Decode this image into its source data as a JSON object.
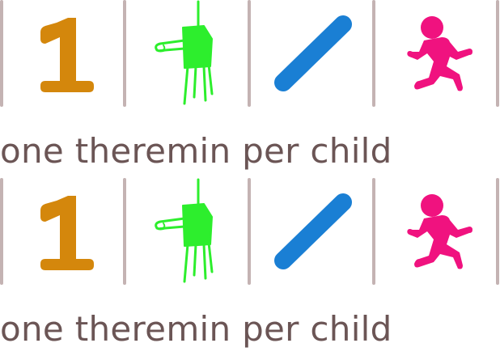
{
  "tagline": "one theremin per child",
  "icons": {
    "one": "number-one-icon",
    "theremin": "theremin-icon",
    "slash": "slash-icon",
    "child": "running-child-icon"
  },
  "colors": {
    "one": "#d4870c",
    "theremin": "#2dee2d",
    "slash": "#1a7fd4",
    "child": "#f0127f",
    "divider": "#c4b3b3",
    "text": "#6b5555"
  }
}
